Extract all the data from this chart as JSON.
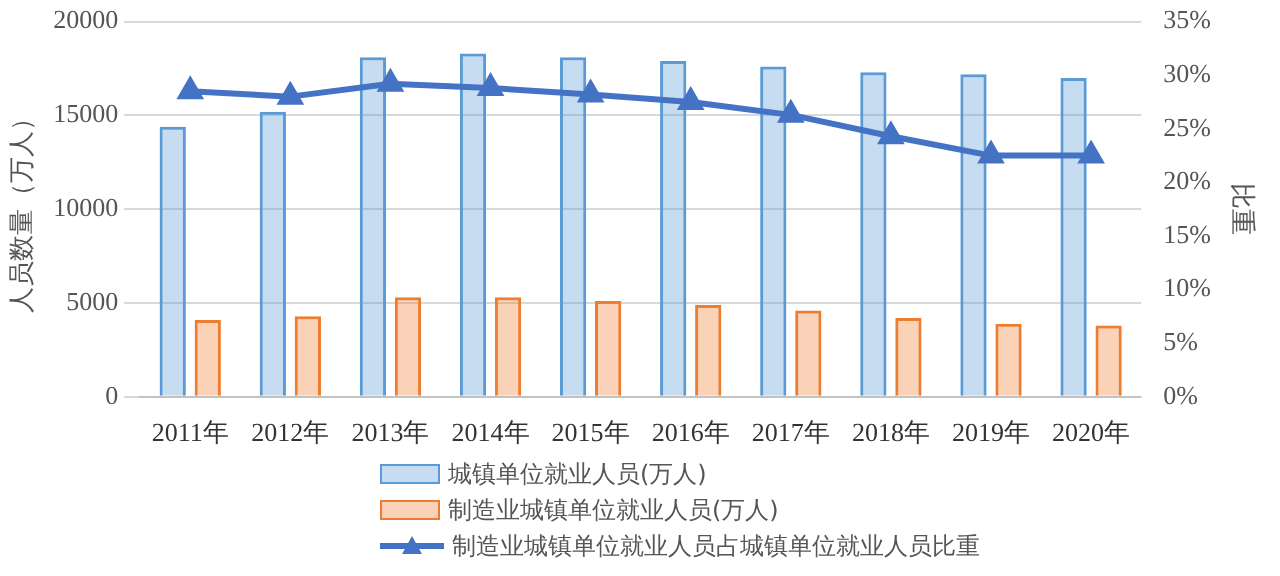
{
  "chart_data": {
    "type": "bar",
    "categories": [
      "2011年",
      "2012年",
      "2013年",
      "2014年",
      "2015年",
      "2016年",
      "2017年",
      "2018年",
      "2019年",
      "2020年"
    ],
    "series": [
      {
        "name": "城镇单位就业人员(万人)",
        "color": "#5b9bd5",
        "values": [
          14400,
          15200,
          18100,
          18300,
          18100,
          17900,
          17600,
          17300,
          17200,
          17000
        ]
      },
      {
        "name": "制造业城镇单位就业人员(万人)",
        "color": "#ed7d31",
        "values": [
          4100,
          4300,
          5300,
          5300,
          5100,
          4900,
          4600,
          4200,
          3900,
          3800
        ]
      },
      {
        "name": "制造业城镇单位就业人员占城镇单位就业人员比重",
        "type": "line",
        "axis": "y2",
        "color": "#4472c4",
        "values": [
          28.5,
          28.0,
          29.2,
          28.8,
          28.2,
          27.5,
          26.3,
          24.3,
          22.5,
          22.5
        ]
      }
    ],
    "ylabel": "人员数量（万人）",
    "y2label": "比重",
    "ylim": [
      0,
      20000
    ],
    "yticks": [
      0,
      5000,
      10000,
      15000,
      20000
    ],
    "y2lim": [
      0,
      35
    ],
    "y2ticks": [
      {
        "value": 0,
        "label": "0%"
      },
      {
        "value": 5,
        "label": "5%"
      },
      {
        "value": 10,
        "label": "10%"
      },
      {
        "value": 15,
        "label": "15%"
      },
      {
        "value": 20,
        "label": "20%"
      },
      {
        "value": 25,
        "label": "25%"
      },
      {
        "value": 30,
        "label": "30%"
      },
      {
        "value": 35,
        "label": "35%"
      }
    ],
    "grid": "y",
    "legend": "bottom",
    "marker": "triangle",
    "line_style": "solid"
  }
}
